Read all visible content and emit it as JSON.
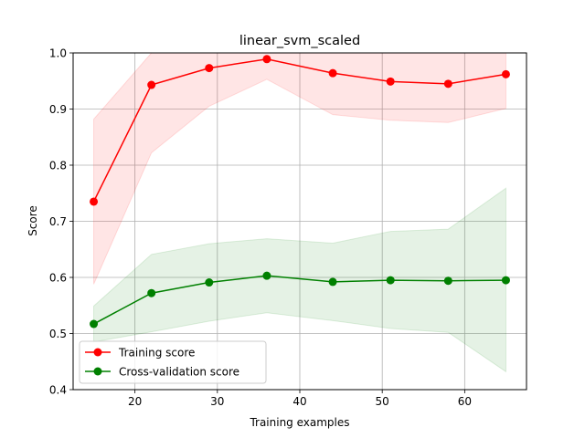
{
  "chart_data": {
    "type": "line",
    "title": "linear_svm_scaled",
    "xlabel": "Training examples",
    "ylabel": "Score",
    "xlim": [
      12.5,
      67.5
    ],
    "ylim": [
      0.4,
      1.0
    ],
    "xticks": [
      20,
      30,
      40,
      50,
      60
    ],
    "yticks": [
      0.4,
      0.5,
      0.6,
      0.7,
      0.8,
      0.9,
      1.0
    ],
    "grid": true,
    "legend_position": "lower-left",
    "x": [
      15,
      22,
      29,
      36,
      44,
      51,
      58,
      65
    ],
    "series": [
      {
        "name": "Training score",
        "color": "#ff0000",
        "fill_color": "#ff0000",
        "values": [
          0.735,
          0.943,
          0.973,
          0.989,
          0.964,
          0.949,
          0.945,
          0.962
        ],
        "upper": [
          0.882,
          1.0,
          1.0,
          1.0,
          1.0,
          1.0,
          1.0,
          1.0
        ],
        "lower": [
          0.588,
          0.822,
          0.905,
          0.953,
          0.89,
          0.88,
          0.876,
          0.901
        ]
      },
      {
        "name": "Cross-validation score",
        "color": "#008000",
        "fill_color": "#008000",
        "values": [
          0.517,
          0.572,
          0.591,
          0.603,
          0.592,
          0.595,
          0.594,
          0.595
        ],
        "upper": [
          0.549,
          0.641,
          0.66,
          0.669,
          0.661,
          0.682,
          0.686,
          0.759
        ],
        "lower": [
          0.485,
          0.503,
          0.522,
          0.537,
          0.523,
          0.509,
          0.502,
          0.432
        ]
      }
    ]
  }
}
